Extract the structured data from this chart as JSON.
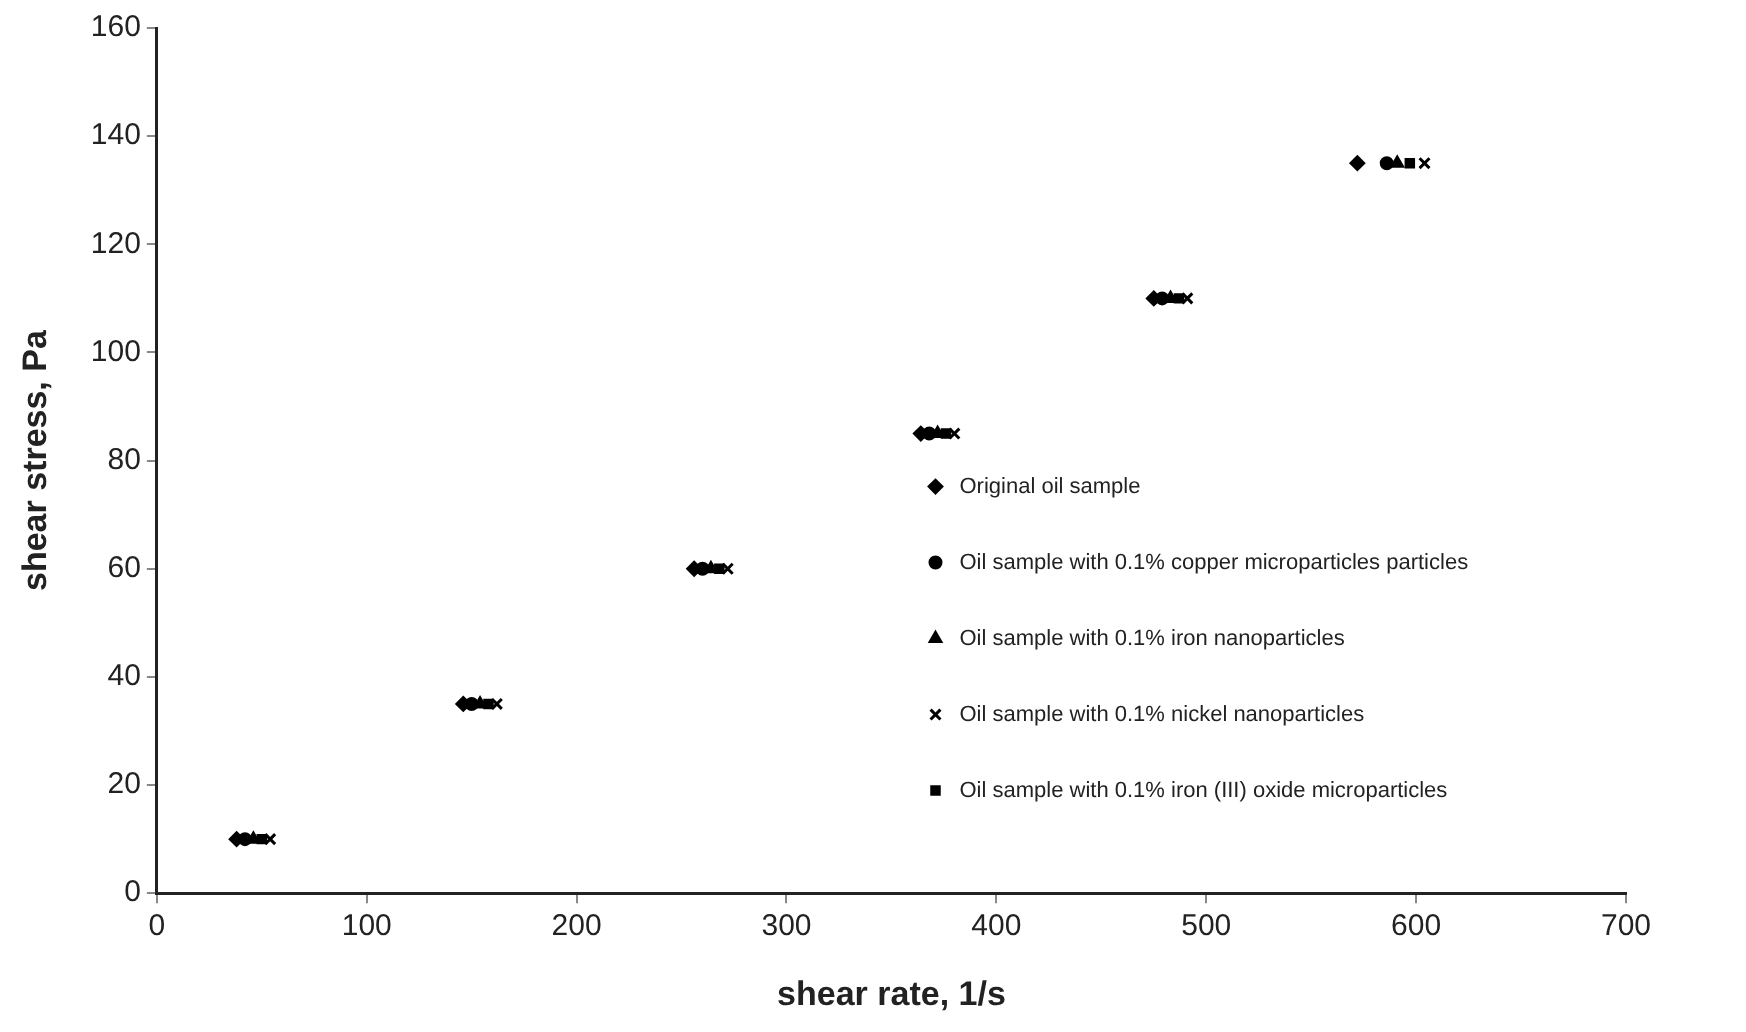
{
  "chart_data": {
    "type": "scatter",
    "xlabel": "shear rate, 1/s",
    "ylabel": "shear stress, Pa",
    "xlim": [
      0,
      700
    ],
    "xticks": [
      0,
      100,
      200,
      300,
      400,
      500,
      600,
      700
    ],
    "ylim": [
      0,
      160
    ],
    "yticks": [
      0,
      20,
      40,
      60,
      80,
      100,
      120,
      140,
      160
    ],
    "grid": false,
    "legend": "right",
    "series": [
      {
        "name": "Original oil sample",
        "color": "#000000",
        "marker": "diamond",
        "x": [
          38,
          146,
          256,
          364,
          475,
          572
        ],
        "values": [
          10,
          35,
          60,
          85,
          110,
          135
        ]
      },
      {
        "name": "Oil sample with 0.1% copper microparticles particles",
        "color": "#000000",
        "marker": "circle",
        "x": [
          42,
          150,
          260,
          368,
          479,
          586
        ],
        "values": [
          10,
          35,
          60,
          85,
          110,
          135
        ]
      },
      {
        "name": "Oil sample with 0.1% iron nanoparticles",
        "color": "#000000",
        "marker": "triangle",
        "x": [
          46,
          154,
          264,
          372,
          483,
          591
        ],
        "values": [
          10,
          35,
          60,
          85,
          110,
          135
        ]
      },
      {
        "name": "Oil sample with 0.1% nickel nanoparticles",
        "color": "#000000",
        "marker": "cross",
        "x": [
          54,
          162,
          272,
          380,
          491,
          604
        ],
        "values": [
          10,
          35,
          60,
          85,
          110,
          135
        ]
      },
      {
        "name": "Oil sample with 0.1% iron (III) oxide microparticles",
        "color": "#000000",
        "marker": "square",
        "x": [
          50,
          158,
          268,
          376,
          487,
          597
        ],
        "values": [
          10,
          35,
          60,
          85,
          110,
          135
        ]
      }
    ]
  }
}
